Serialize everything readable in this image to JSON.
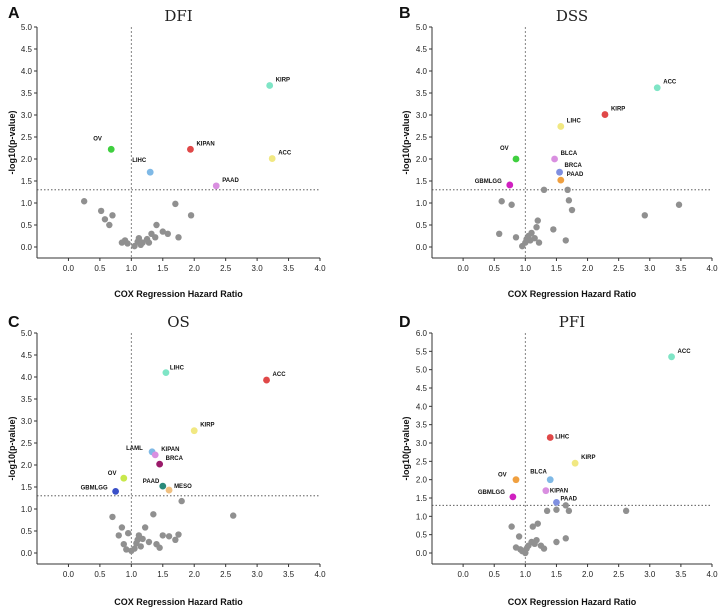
{
  "chart_data": [
    {
      "type": "scatter",
      "panel_letter": "A",
      "title": "DFI",
      "xlabel": "COX Regression Hazard Ratio",
      "ylabel": "-log10(p-value)",
      "xlim": [
        -0.5,
        4.0
      ],
      "ylim": [
        -0.25,
        5.0
      ],
      "xticks": [
        0.0,
        0.5,
        1.0,
        1.5,
        2.0,
        2.5,
        3.0,
        3.5,
        4.0
      ],
      "yticks": [
        0.0,
        0.5,
        1.0,
        1.5,
        2.0,
        2.5,
        3.0,
        3.5,
        4.0,
        4.5,
        5.0
      ],
      "hline": 1.3,
      "vline": 1.0,
      "labeled_points": [
        {
          "label": "KIRP",
          "x": 3.2,
          "y": 3.67,
          "color": "#7fe5c6"
        },
        {
          "label": "OV",
          "x": 0.68,
          "y": 2.22,
          "color": "#3fcf3f"
        },
        {
          "label": "KIPAN",
          "x": 1.94,
          "y": 2.22,
          "color": "#e04848"
        },
        {
          "label": "LIHC",
          "x": 1.3,
          "y": 1.7,
          "color": "#7fb9e6"
        },
        {
          "label": "ACC",
          "x": 3.24,
          "y": 2.01,
          "color": "#f1e882"
        },
        {
          "label": "PAAD",
          "x": 2.35,
          "y": 1.39,
          "color": "#d98fe0"
        }
      ],
      "other_points": [
        [
          0.25,
          1.04
        ],
        [
          0.52,
          0.82
        ],
        [
          0.58,
          0.63
        ],
        [
          0.65,
          0.5
        ],
        [
          0.7,
          0.72
        ],
        [
          0.85,
          0.1
        ],
        [
          0.9,
          0.15
        ],
        [
          0.94,
          0.08
        ],
        [
          1.05,
          0.02
        ],
        [
          1.1,
          0.12
        ],
        [
          1.12,
          0.2
        ],
        [
          1.15,
          0.05
        ],
        [
          1.18,
          0.1
        ],
        [
          1.25,
          0.18
        ],
        [
          1.28,
          0.1
        ],
        [
          1.32,
          0.3
        ],
        [
          1.38,
          0.22
        ],
        [
          1.4,
          0.5
        ],
        [
          1.5,
          0.35
        ],
        [
          1.58,
          0.3
        ],
        [
          1.7,
          0.98
        ],
        [
          1.75,
          0.22
        ],
        [
          1.95,
          0.72
        ]
      ]
    },
    {
      "type": "scatter",
      "panel_letter": "B",
      "title": "DSS",
      "xlabel": "COX Regression Hazard Ratio",
      "ylabel": "-log10(p-value)",
      "xlim": [
        -0.5,
        4.0
      ],
      "ylim": [
        -0.25,
        5.0
      ],
      "xticks": [
        0.0,
        0.5,
        1.0,
        1.5,
        2.0,
        2.5,
        3.0,
        3.5,
        4.0
      ],
      "yticks": [
        0.0,
        0.5,
        1.0,
        1.5,
        2.0,
        2.5,
        3.0,
        3.5,
        4.0,
        4.5,
        5.0
      ],
      "hline": 1.3,
      "vline": 1.0,
      "labeled_points": [
        {
          "label": "ACC",
          "x": 3.12,
          "y": 3.62,
          "color": "#7fe5c6"
        },
        {
          "label": "KIRP",
          "x": 2.28,
          "y": 3.01,
          "color": "#e04848"
        },
        {
          "label": "LIHC",
          "x": 1.57,
          "y": 2.74,
          "color": "#f1e882"
        },
        {
          "label": "OV",
          "x": 0.85,
          "y": 2.0,
          "color": "#3fcf3f"
        },
        {
          "label": "BLCA",
          "x": 1.47,
          "y": 2.0,
          "color": "#d98fe0"
        },
        {
          "label": "BRCA",
          "x": 1.55,
          "y": 1.7,
          "color": "#7f8fe0"
        },
        {
          "label": "PAAD",
          "x": 1.57,
          "y": 1.52,
          "color": "#f0a040"
        },
        {
          "label": "GBMLGG",
          "x": 0.75,
          "y": 1.41,
          "color": "#d020c0"
        }
      ],
      "other_points": [
        [
          0.58,
          0.3
        ],
        [
          0.62,
          1.04
        ],
        [
          0.78,
          0.96
        ],
        [
          0.85,
          0.22
        ],
        [
          0.95,
          0.02
        ],
        [
          1.0,
          0.1
        ],
        [
          1.02,
          0.18
        ],
        [
          1.05,
          0.25
        ],
        [
          1.08,
          0.15
        ],
        [
          1.1,
          0.32
        ],
        [
          1.15,
          0.2
        ],
        [
          1.18,
          0.45
        ],
        [
          1.2,
          0.6
        ],
        [
          1.22,
          0.1
        ],
        [
          1.3,
          1.3
        ],
        [
          1.45,
          0.4
        ],
        [
          1.65,
          0.15
        ],
        [
          1.68,
          1.3
        ],
        [
          1.7,
          1.06
        ],
        [
          1.75,
          0.84
        ],
        [
          2.92,
          0.72
        ],
        [
          3.47,
          0.96
        ]
      ]
    },
    {
      "type": "scatter",
      "panel_letter": "C",
      "title": "OS",
      "xlabel": "COX Regression Hazard Ratio",
      "ylabel": "-log10(p-value)",
      "xlim": [
        -0.5,
        4.0
      ],
      "ylim": [
        -0.25,
        5.0
      ],
      "xticks": [
        0.0,
        0.5,
        1.0,
        1.5,
        2.0,
        2.5,
        3.0,
        3.5,
        4.0
      ],
      "yticks": [
        0.0,
        0.5,
        1.0,
        1.5,
        2.0,
        2.5,
        3.0,
        3.5,
        4.0,
        4.5,
        5.0
      ],
      "hline": 1.3,
      "vline": 1.0,
      "labeled_points": [
        {
          "label": "LIHC",
          "x": 1.55,
          "y": 4.1,
          "color": "#7fe5c6"
        },
        {
          "label": "ACC",
          "x": 3.15,
          "y": 3.93,
          "color": "#e04848"
        },
        {
          "label": "KIRP",
          "x": 2.0,
          "y": 2.78,
          "color": "#f1e882"
        },
        {
          "label": "LAML",
          "x": 1.33,
          "y": 2.3,
          "color": "#7fb9e6"
        },
        {
          "label": "KIPAN",
          "x": 1.38,
          "y": 2.23,
          "color": "#d98fe0"
        },
        {
          "label": "BRCA",
          "x": 1.45,
          "y": 2.02,
          "color": "#9a1a6a"
        },
        {
          "label": "OV",
          "x": 0.88,
          "y": 1.7,
          "color": "#c8e84c"
        },
        {
          "label": "PAAD",
          "x": 1.5,
          "y": 1.52,
          "color": "#2a8a7a"
        },
        {
          "label": "MESO",
          "x": 1.6,
          "y": 1.43,
          "color": "#f0c080"
        },
        {
          "label": "GBMLGG",
          "x": 0.75,
          "y": 1.4,
          "color": "#3a50c8"
        }
      ],
      "other_points": [
        [
          0.7,
          0.82
        ],
        [
          0.8,
          0.4
        ],
        [
          0.85,
          0.58
        ],
        [
          0.88,
          0.2
        ],
        [
          0.92,
          0.08
        ],
        [
          0.95,
          0.45
        ],
        [
          1.0,
          0.05
        ],
        [
          1.05,
          0.1
        ],
        [
          1.08,
          0.22
        ],
        [
          1.1,
          0.3
        ],
        [
          1.12,
          0.4
        ],
        [
          1.15,
          0.15
        ],
        [
          1.18,
          0.32
        ],
        [
          1.22,
          0.58
        ],
        [
          1.28,
          0.25
        ],
        [
          1.35,
          0.88
        ],
        [
          1.4,
          0.2
        ],
        [
          1.45,
          0.12
        ],
        [
          1.5,
          0.4
        ],
        [
          1.6,
          0.38
        ],
        [
          1.7,
          0.3
        ],
        [
          1.75,
          0.42
        ],
        [
          1.8,
          1.18
        ],
        [
          2.62,
          0.85
        ]
      ]
    },
    {
      "type": "scatter",
      "panel_letter": "D",
      "title": "PFI",
      "xlabel": "COX Regression Hazard Ratio",
      "ylabel": "-log10(p-value)",
      "xlim": [
        -0.5,
        4.0
      ],
      "ylim": [
        -0.3,
        6.0
      ],
      "xticks": [
        0.0,
        0.5,
        1.0,
        1.5,
        2.0,
        2.5,
        3.0,
        3.5,
        4.0
      ],
      "yticks": [
        0.0,
        0.5,
        1.0,
        1.5,
        2.0,
        2.5,
        3.0,
        3.5,
        4.0,
        4.5,
        5.0,
        5.5,
        6.0
      ],
      "hline": 1.3,
      "vline": 1.0,
      "labeled_points": [
        {
          "label": "ACC",
          "x": 3.35,
          "y": 5.35,
          "color": "#7fe5c6"
        },
        {
          "label": "LIHC",
          "x": 1.4,
          "y": 3.15,
          "color": "#e04848"
        },
        {
          "label": "KIRP",
          "x": 1.8,
          "y": 2.45,
          "color": "#f1e882"
        },
        {
          "label": "OV",
          "x": 0.85,
          "y": 2.0,
          "color": "#f0a040"
        },
        {
          "label": "BLCA",
          "x": 1.4,
          "y": 2.0,
          "color": "#7fb9e6"
        },
        {
          "label": "KIPAN",
          "x": 1.33,
          "y": 1.7,
          "color": "#d98fe0"
        },
        {
          "label": "GBMLGG",
          "x": 0.8,
          "y": 1.53,
          "color": "#d020c0"
        },
        {
          "label": "PAAD",
          "x": 1.5,
          "y": 1.38,
          "color": "#7f8fe0"
        }
      ],
      "other_points": [
        [
          0.78,
          0.72
        ],
        [
          0.85,
          0.15
        ],
        [
          0.9,
          0.45
        ],
        [
          0.92,
          0.1
        ],
        [
          0.95,
          0.05
        ],
        [
          1.0,
          0.0
        ],
        [
          1.02,
          0.12
        ],
        [
          1.05,
          0.2
        ],
        [
          1.1,
          0.3
        ],
        [
          1.12,
          0.72
        ],
        [
          1.15,
          0.25
        ],
        [
          1.18,
          0.35
        ],
        [
          1.2,
          0.8
        ],
        [
          1.25,
          0.2
        ],
        [
          1.3,
          0.12
        ],
        [
          1.35,
          1.15
        ],
        [
          1.5,
          0.3
        ],
        [
          1.5,
          1.18
        ],
        [
          1.65,
          0.4
        ],
        [
          1.65,
          1.3
        ],
        [
          1.7,
          1.15
        ],
        [
          2.62,
          1.15
        ]
      ]
    }
  ]
}
